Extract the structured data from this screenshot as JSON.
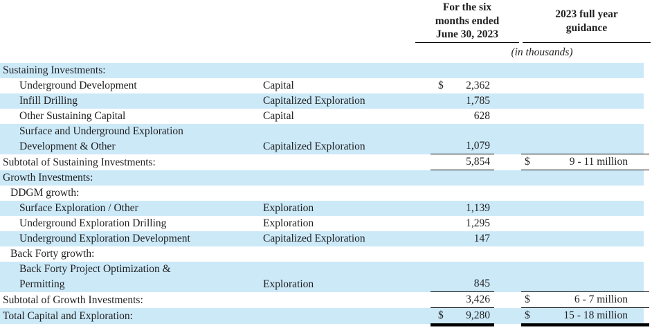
{
  "title": "Capital and exploration investments table",
  "colors": {
    "stripe": "#cce9f8",
    "rule": "#000000",
    "text": "#1f1f1f"
  },
  "header": {
    "period_lines": [
      "For the six",
      "months ended",
      "June 30, 2023"
    ],
    "guidance_lines": [
      "2023 full year",
      "guidance"
    ],
    "units_note": "(in thousands)"
  },
  "table": {
    "rows": [
      {
        "label_lines": [
          "Sustaining Investments:"
        ],
        "category": "",
        "currency": "",
        "amount": "",
        "guidance_currency": "",
        "guidance": "",
        "indent": 0,
        "shaded": true,
        "rule": "none"
      },
      {
        "label_lines": [
          "Underground Development"
        ],
        "category": "Capital",
        "currency": "$",
        "amount": "2,362",
        "guidance_currency": "",
        "guidance": "",
        "indent": 2,
        "shaded": false,
        "rule": "none"
      },
      {
        "label_lines": [
          "Infill Drilling"
        ],
        "category": "Capitalized Exploration",
        "currency": "",
        "amount": "1,785",
        "guidance_currency": "",
        "guidance": "",
        "indent": 2,
        "shaded": true,
        "rule": "none"
      },
      {
        "label_lines": [
          "Other Sustaining Capital"
        ],
        "category": "Capital",
        "currency": "",
        "amount": "628",
        "guidance_currency": "",
        "guidance": "",
        "indent": 2,
        "shaded": false,
        "rule": "none"
      },
      {
        "label_lines": [
          "Surface and Underground Exploration",
          "Development & Other"
        ],
        "category": "Capitalized Exploration",
        "currency": "",
        "amount": "1,079",
        "guidance_currency": "",
        "guidance": "",
        "indent": 2,
        "shaded": true,
        "rule": "single"
      },
      {
        "label_lines": [
          "Subtotal of Sustaining Investments:"
        ],
        "category": "",
        "currency": "",
        "amount": "5,854",
        "guidance_currency": "$",
        "guidance": "9 - 11 million",
        "indent": 0,
        "shaded": false,
        "rule": "single"
      },
      {
        "label_lines": [
          "Growth Investments:"
        ],
        "category": "",
        "currency": "",
        "amount": "",
        "guidance_currency": "",
        "guidance": "",
        "indent": 0,
        "shaded": true,
        "rule": "none"
      },
      {
        "label_lines": [
          "DDGM growth:"
        ],
        "category": "",
        "currency": "",
        "amount": "",
        "guidance_currency": "",
        "guidance": "",
        "indent": 1,
        "shaded": false,
        "rule": "none"
      },
      {
        "label_lines": [
          "Surface Exploration / Other"
        ],
        "category": "Exploration",
        "currency": "",
        "amount": "1,139",
        "guidance_currency": "",
        "guidance": "",
        "indent": 2,
        "shaded": true,
        "rule": "none"
      },
      {
        "label_lines": [
          "Underground Exploration Drilling"
        ],
        "category": "Exploration",
        "currency": "",
        "amount": "1,295",
        "guidance_currency": "",
        "guidance": "",
        "indent": 2,
        "shaded": false,
        "rule": "none"
      },
      {
        "label_lines": [
          "Underground Exploration Development"
        ],
        "category": "Capitalized Exploration",
        "currency": "",
        "amount": "147",
        "guidance_currency": "",
        "guidance": "",
        "indent": 2,
        "shaded": true,
        "rule": "none"
      },
      {
        "label_lines": [
          "Back Forty growth:"
        ],
        "category": "",
        "currency": "",
        "amount": "",
        "guidance_currency": "",
        "guidance": "",
        "indent": 1,
        "shaded": false,
        "rule": "none"
      },
      {
        "label_lines": [
          "Back Forty Project Optimization &",
          "Permitting"
        ],
        "category": "Exploration",
        "currency": "",
        "amount": "845",
        "guidance_currency": "",
        "guidance": "",
        "indent": 2,
        "shaded": true,
        "rule": "single"
      },
      {
        "label_lines": [
          "Subtotal of Growth Investments:"
        ],
        "category": "",
        "currency": "",
        "amount": "3,426",
        "guidance_currency": "$",
        "guidance": "6 - 7 million",
        "indent": 0,
        "shaded": false,
        "rule": "single"
      },
      {
        "label_lines": [
          "Total Capital and Exploration:"
        ],
        "category": "",
        "currency": "$",
        "amount": "9,280",
        "guidance_currency": "$",
        "guidance": "15 - 18 million",
        "indent": 0,
        "shaded": true,
        "rule": "double"
      }
    ]
  }
}
